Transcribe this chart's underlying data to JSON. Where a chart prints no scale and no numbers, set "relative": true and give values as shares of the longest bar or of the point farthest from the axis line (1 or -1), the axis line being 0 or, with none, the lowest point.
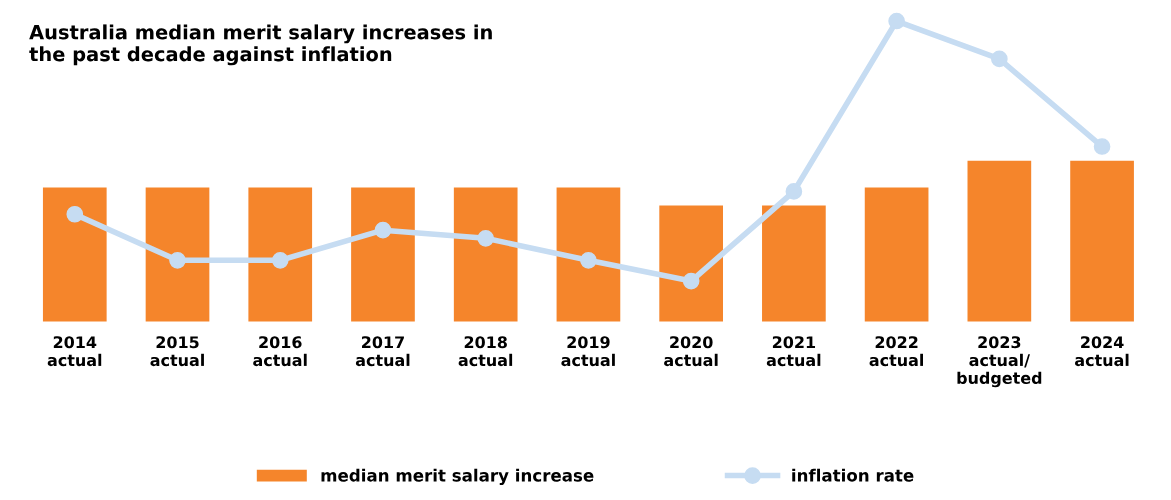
{
  "chart_data": {
    "type": "bar",
    "title": "Australia median merit salary increases in\nthe past decade against inflation",
    "categories": [
      "2014\nactual",
      "2015\nactual",
      "2016\nactual",
      "2017\nactual",
      "2018\nactual",
      "2019\nactual",
      "2020\nactual",
      "2021\nactual",
      "2022\nactual",
      "2023\nactual/\nbudgeted",
      "2024\nactual"
    ],
    "relative": true,
    "series": [
      {
        "name": "median merit salary increase",
        "color": "#f5852b",
        "values": [
          0.447,
          0.447,
          0.447,
          0.447,
          0.447,
          0.447,
          0.387,
          0.387,
          0.447,
          0.536,
          0.536
        ]
      },
      {
        "name": "inflation rate",
        "type": "line",
        "color": "#c6dcf2",
        "values": [
          0.358,
          0.205,
          0.205,
          0.305,
          0.278,
          0.205,
          0.136,
          0.434,
          1,
          0.874,
          0.583
        ]
      }
    ],
    "marker": "circle",
    "line_style": "solid",
    "grid": false,
    "legend": "bottom"
  }
}
